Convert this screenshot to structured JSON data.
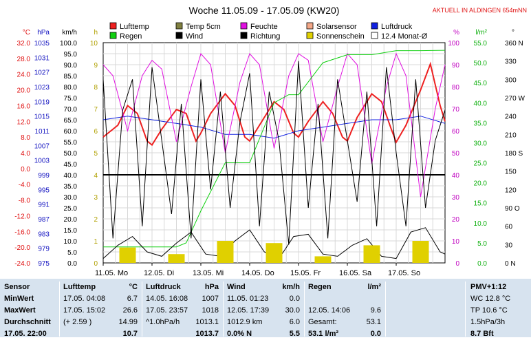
{
  "chart_data": {
    "type": "line",
    "title": "Woche 11.05.09 - 17.05.09 (KW20)",
    "banner": "AKTUELL IN ALDINGEN 654mNN",
    "x_tick_labels": [
      "11.05.  Mo",
      "12.05.  Di",
      "13.05.  Mi",
      "14.05.  Do",
      "15.05.  Fr",
      "16.05.  Sa",
      "17.05.  So"
    ],
    "axes": [
      {
        "unit": "°C",
        "color": "#e01010",
        "ticks": [
          "32.0",
          "28.0",
          "24.0",
          "20.0",
          "16.0",
          "12.0",
          "8.0",
          "4.0",
          "0.0",
          "-4.0",
          "-8.0",
          "-12.0",
          "-16.0",
          "-20.0",
          "-24.0"
        ]
      },
      {
        "unit": "hPa",
        "color": "#1010c0",
        "ticks": [
          "1035",
          "1031",
          "1027",
          "1023",
          "1019",
          "1015",
          "1011",
          "1007",
          "1003",
          "999",
          "995",
          "991",
          "987",
          "983",
          "979",
          "975"
        ]
      },
      {
        "unit": "km/h",
        "color": "#000000",
        "ticks": [
          "100.0",
          "95.0",
          "90.0",
          "85.0",
          "80.0",
          "75.0",
          "70.0",
          "65.0",
          "60.0",
          "55.0",
          "50.0",
          "45.0",
          "40.0",
          "35.0",
          "30.0",
          "25.0",
          "20.0",
          "15.0",
          "10.0",
          "5.0",
          "0.0"
        ]
      },
      {
        "unit": "h",
        "color": "#b0a000",
        "ticks": [
          "10",
          "9",
          "8",
          "7",
          "6",
          "5",
          "4",
          "3",
          "2",
          "1",
          "0"
        ]
      },
      {
        "unit": "%",
        "color": "#c000c0",
        "ticks": [
          "100",
          "90",
          "80",
          "70",
          "60",
          "50",
          "40",
          "30",
          "20",
          "10",
          "0"
        ]
      },
      {
        "unit": "l/m²",
        "color": "#10b010",
        "ticks": [
          "55.0",
          "50.0",
          "45.0",
          "40.0",
          "35.0",
          "30.0",
          "25.0",
          "20.0",
          "15.0",
          "10.0",
          "5.0",
          "0.0"
        ]
      },
      {
        "unit": "°",
        "color": "#000000",
        "ticks": [
          "360 N",
          "330",
          "300",
          "270 W",
          "240",
          "210",
          "180 S",
          "150",
          "120",
          "90  O",
          "60",
          "30",
          "0    N"
        ]
      }
    ],
    "ylim_temp": [
      -24,
      32
    ],
    "ylim_pressure": [
      975,
      1035
    ],
    "ylim_wind": [
      0,
      100
    ],
    "ylim_sun": [
      0,
      10
    ],
    "ylim_humidity": [
      0,
      100
    ],
    "ylim_rain": [
      0,
      55
    ],
    "ylim_direction": [
      0,
      360
    ],
    "legend": [
      {
        "label": "Lufttemp",
        "color": "#ee2020"
      },
      {
        "label": "Temp 5cm",
        "color": "#808040"
      },
      {
        "label": "Feuchte",
        "color": "#e010e0"
      },
      {
        "label": "Solarsensor",
        "color": "#f4a888"
      },
      {
        "label": "Luftdruck",
        "color": "#1020e0"
      },
      {
        "label": "Regen",
        "color": "#10d010"
      },
      {
        "label": "Wind",
        "color": "#000000"
      },
      {
        "label": "Richtung",
        "color": "#000000"
      },
      {
        "label": "Sonnenschein",
        "color": "#e0d000"
      },
      {
        "label": "12.4 Monat-Ø",
        "color": "#ffffff"
      }
    ],
    "series": [
      {
        "name": "Lufttemp",
        "color": "#ee2020",
        "unit": "°C",
        "x": [
          0,
          0.3,
          0.5,
          0.7,
          0.9,
          1.0,
          1.2,
          1.5,
          1.7,
          1.9,
          2.0,
          2.2,
          2.5,
          2.7,
          2.9,
          3.0,
          3.2,
          3.5,
          3.7,
          3.9,
          4.0,
          4.2,
          4.5,
          4.7,
          4.9,
          5.0,
          5.2,
          5.5,
          5.7,
          5.9,
          6.0,
          6.2,
          6.5,
          6.7,
          6.9,
          7.0
        ],
        "y": [
          8,
          11,
          16,
          14,
          7,
          6,
          10,
          15,
          14,
          7,
          9,
          14,
          19,
          16,
          8,
          7,
          11,
          17,
          15,
          9,
          8,
          12,
          17,
          14,
          8,
          7,
          13,
          19,
          17,
          10,
          6.7,
          11,
          20,
          26.6,
          16,
          12
        ]
      },
      {
        "name": "Luftdruck",
        "color": "#1020e0",
        "unit": "hPa",
        "x": [
          0,
          0.5,
          1.0,
          1.5,
          2.0,
          2.5,
          3.0,
          3.5,
          4.0,
          4.5,
          5.0,
          5.5,
          6.0,
          6.5,
          7.0
        ],
        "y": [
          1014,
          1015,
          1014,
          1013,
          1012,
          1010,
          1010,
          1009,
          1011,
          1012,
          1013,
          1014,
          1014,
          1015,
          1013
        ]
      },
      {
        "name": "Feuchte",
        "color": "#e010e0",
        "unit": "%",
        "x": [
          0,
          0.2,
          0.5,
          0.8,
          1.0,
          1.2,
          1.5,
          1.8,
          2.0,
          2.2,
          2.5,
          2.8,
          3.0,
          3.2,
          3.5,
          3.8,
          4.0,
          4.2,
          4.5,
          4.8,
          5.0,
          5.2,
          5.5,
          5.8,
          6.0,
          6.2,
          6.5,
          6.8,
          7.0
        ],
        "y": [
          90,
          85,
          60,
          85,
          92,
          88,
          55,
          80,
          95,
          90,
          50,
          82,
          95,
          90,
          52,
          85,
          95,
          92,
          55,
          80,
          95,
          90,
          45,
          80,
          95,
          85,
          30,
          70,
          90
        ]
      },
      {
        "name": "Regen",
        "color": "#10d010",
        "unit": "l/m²",
        "x": [
          0,
          1.5,
          1.7,
          2.0,
          2.5,
          3.0,
          3.5,
          3.8,
          4.0,
          4.5,
          5.0,
          5.5,
          6.0,
          6.5,
          7.0
        ],
        "y": [
          4,
          4,
          5,
          13,
          25,
          25,
          40,
          42,
          42,
          50,
          52,
          52,
          53,
          53,
          53.1
        ]
      },
      {
        "name": "Wind",
        "color": "#000000",
        "unit": "km/h",
        "x": [
          0,
          0.3,
          0.6,
          0.9,
          1.2,
          1.5,
          1.8,
          2.1,
          2.4,
          2.7,
          3.0,
          3.3,
          3.6,
          3.9,
          4.2,
          4.5,
          4.8,
          5.1,
          5.4,
          5.7,
          6.0,
          6.3,
          6.6,
          6.9,
          7.0
        ],
        "y": [
          2,
          8,
          12,
          5,
          3,
          9,
          14,
          4,
          3,
          10,
          15,
          5,
          2,
          12,
          13,
          4,
          3,
          8,
          11,
          3,
          2,
          14,
          16,
          5,
          4
        ]
      },
      {
        "name": "Richtung",
        "color": "#000000",
        "unit": "°",
        "x": [
          0,
          0.2,
          0.4,
          0.6,
          0.8,
          1.0,
          1.2,
          1.4,
          1.6,
          1.8,
          2.0,
          2.2,
          2.4,
          2.6,
          2.8,
          3.0,
          3.2,
          3.4,
          3.6,
          3.8,
          4.0,
          4.2,
          4.4,
          4.6,
          4.8,
          5.0,
          5.2,
          5.4,
          5.6,
          5.8,
          6.0,
          6.2,
          6.4,
          6.6,
          6.8,
          7.0
        ],
        "y": [
          300,
          40,
          250,
          300,
          60,
          320,
          200,
          80,
          260,
          40,
          300,
          120,
          280,
          90,
          230,
          310,
          60,
          280,
          200,
          30,
          330,
          90,
          260,
          40,
          300,
          200,
          100,
          280,
          60,
          320,
          180,
          60,
          300,
          90,
          200,
          250
        ]
      },
      {
        "name": "Sonnenschein",
        "color": "#e0d000",
        "unit": "h",
        "x": [
          0.5,
          1.5,
          2.5,
          3.5,
          4.5,
          5.5,
          6.5
        ],
        "y": [
          0.7,
          0.4,
          1.0,
          0.9,
          0.3,
          0.8,
          1.0
        ]
      }
    ],
    "grid": true
  },
  "table": {
    "row_labels": [
      "Sensor",
      "MinWert",
      "MaxWert",
      "Durchschnitt",
      "17.05. 22:00"
    ],
    "luft": {
      "title": "Lufttemp",
      "unit": "°C",
      "min_time": "17.05.  04:08",
      "min": "6.7",
      "max_time": "17.05.  15:02",
      "max": "26.6",
      "avg_note": "(+ 2.59 )",
      "avg": "14.99",
      "cur": "10.7"
    },
    "druck": {
      "title": "Luftdruck",
      "unit": "hPa",
      "min_time": "14.05.  16:08",
      "min": "1007",
      "max_time": "17.05.  23:57",
      "max": "1018",
      "avg_note": "^1.0hPa/h",
      "avg": "1013.1",
      "cur": "1013.7"
    },
    "wind": {
      "title": "Wind",
      "unit": "km/h",
      "min_time": "11.05.  01:23",
      "min": "0.0",
      "max_time": "12.05.  17:39",
      "max": "30.0",
      "avg_note": "1012.9 km",
      "avg": "6.0",
      "cur_note": "0.0% N",
      "cur": "5.5"
    },
    "regen": {
      "title": "Regen",
      "unit": "l/m²",
      "max_time": "12.05.  14:06",
      "max": "9.6",
      "avg_note": "Gesamt:",
      "avg": "53.1",
      "cur_note": "53.1 l/m²",
      "cur": "0.0"
    },
    "pmv": {
      "title": "PMV+1:12",
      "l1": "WC 12.8 °C",
      "l2": "TP 10.6 °C",
      "l3": "1.5hPa/3h",
      "l4": "8.7 Bft"
    }
  }
}
